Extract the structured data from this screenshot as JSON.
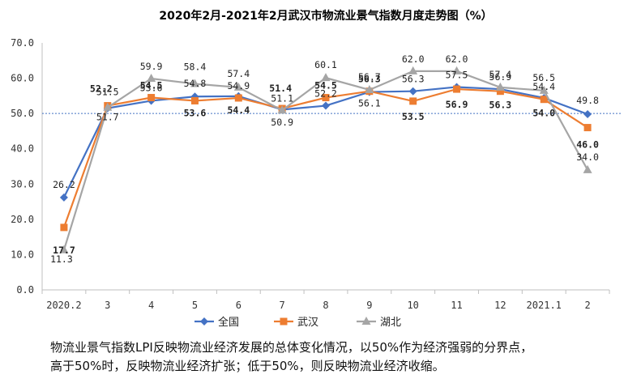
{
  "chart_data": {
    "type": "line",
    "title": "2020年2月-2021年2月武汉市物流业景气指数月度走势图（%）",
    "categories": [
      "2020.2",
      "3",
      "4",
      "5",
      "6",
      "7",
      "8",
      "9",
      "10",
      "11",
      "12",
      "2021.1",
      "2"
    ],
    "ylim": [
      0,
      70
    ],
    "yticks": [
      "0.0",
      "10.0",
      "20.0",
      "30.0",
      "40.0",
      "50.0",
      "60.0",
      "70.0"
    ],
    "reference_line": 50,
    "series": [
      {
        "name": "全国",
        "color": "#4472c4",
        "marker": "diamond",
        "values": [
          26.2,
          51.5,
          53.6,
          54.8,
          54.9,
          51.1,
          52.2,
          56.1,
          56.3,
          57.5,
          56.9,
          54.4,
          49.8
        ],
        "labels": [
          "26.2",
          "51.5",
          "53.6",
          "54.8",
          "54.9",
          "51.1",
          "52.2",
          "56.1",
          "56.3",
          "57.5",
          "56.9",
          "54.4",
          "49.8"
        ]
      },
      {
        "name": "武汉",
        "color": "#ed7d31",
        "marker": "square",
        "values": [
          17.7,
          52.2,
          54.5,
          53.6,
          54.4,
          51.4,
          54.5,
          56.3,
          53.5,
          56.9,
          56.3,
          54.0,
          46.0
        ],
        "labels": [
          "17.7",
          "52.2",
          "54.5",
          "53.6",
          "54.4",
          "51.4",
          "54.5",
          "56.3",
          "53.5",
          "56.9",
          "56.3",
          "54.0",
          "46.0"
        ]
      },
      {
        "name": "湖北",
        "color": "#a5a5a5",
        "marker": "triangle",
        "values": [
          11.3,
          51.7,
          59.9,
          58.4,
          57.4,
          50.9,
          60.1,
          56.7,
          62.0,
          62.0,
          57.4,
          56.5,
          34.0
        ],
        "labels": [
          "11.3",
          "51.7",
          "59.9",
          "58.4",
          "57.4",
          "50.9",
          "60.1",
          "56.7",
          "62.0",
          "62.0",
          "57.4",
          "56.5",
          "34.0"
        ]
      }
    ],
    "legend": "bottom",
    "grid": false
  },
  "notes": {
    "line1": "物流业景气指数LPI反映物流业经济发展的总体变化情况，以50%作为经济强弱的分界点，",
    "line2": "高于50%时，反映物流业经济扩张；低于50%，则反映物流业经济收缩。"
  }
}
